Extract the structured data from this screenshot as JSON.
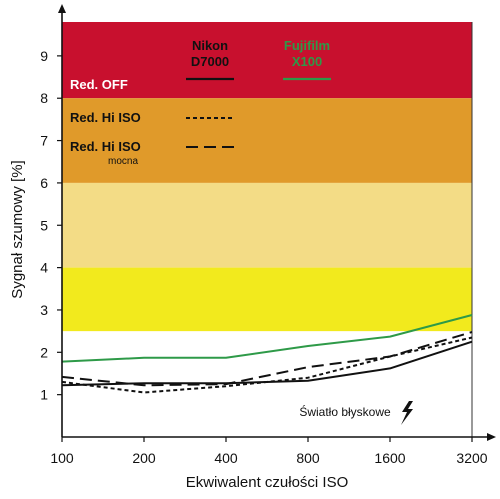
{
  "chart_data": {
    "type": "line",
    "xlabel": "Ekwiwalent czułości ISO",
    "ylabel": "Sygnał szumowy [%]",
    "categories": [
      "100",
      "200",
      "400",
      "800",
      "1600",
      "3200"
    ],
    "ylim": [
      0,
      9.8
    ],
    "yticks": [
      "1",
      "2",
      "3",
      "4",
      "5",
      "6",
      "7",
      "8",
      "9"
    ],
    "bands": [
      {
        "from": 8,
        "to": 9.8,
        "color": "#c8102e"
      },
      {
        "from": 6,
        "to": 8,
        "color": "#e09a2a"
      },
      {
        "from": 4,
        "to": 6,
        "color": "#f3dc86"
      },
      {
        "from": 2.5,
        "to": 4,
        "color": "#f2ea1d"
      }
    ],
    "legend": {
      "cameras": [
        {
          "name": "Nikon D7000",
          "line1": "Nikon",
          "line2": "D7000",
          "color": "#111111"
        },
        {
          "name": "Fujifilm X100",
          "line1": "Fujifilm",
          "line2": "X100",
          "color": "#2e9a48"
        }
      ],
      "modes": [
        {
          "label": "Red. OFF",
          "sub": "",
          "style": "solid",
          "color": "#ffffff"
        },
        {
          "label": "Red. Hi ISO",
          "sub": "",
          "style": "dotted",
          "color": "#111111"
        },
        {
          "label": "Red. Hi ISO",
          "sub": "mocna",
          "style": "dashed",
          "color": "#111111"
        }
      ]
    },
    "series": [
      {
        "camera": "Fujifilm X100",
        "mode": "Red. OFF",
        "color": "#2e9a48",
        "style": "solid",
        "values": [
          1.78,
          1.87,
          1.87,
          2.15,
          2.37,
          2.88
        ]
      },
      {
        "camera": "Nikon D7000",
        "mode": "Red. OFF",
        "color": "#111111",
        "style": "solid",
        "values": [
          1.22,
          1.27,
          1.27,
          1.33,
          1.62,
          2.25
        ]
      },
      {
        "camera": "Nikon D7000",
        "mode": "Red. Hi ISO",
        "color": "#111111",
        "style": "dotted",
        "values": [
          1.3,
          1.05,
          1.2,
          1.4,
          1.9,
          2.35
        ]
      },
      {
        "camera": "Nikon D7000",
        "mode": "Red. Hi ISO mocna",
        "color": "#111111",
        "style": "dashed",
        "values": [
          1.42,
          1.22,
          1.25,
          1.65,
          1.9,
          2.48
        ]
      }
    ],
    "annotation": {
      "text": "Światło błyskowe",
      "icon": "lightning-bolt-icon"
    }
  }
}
